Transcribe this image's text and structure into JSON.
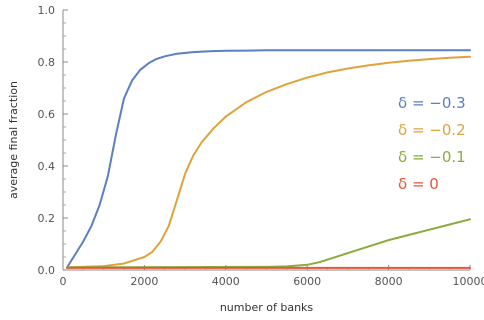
{
  "chart_data": {
    "type": "line",
    "xlabel": "number of banks",
    "ylabel": "average final fraction",
    "xlim": [
      0,
      10000
    ],
    "ylim": [
      0,
      1.0
    ],
    "x_ticks": [
      0,
      2000,
      4000,
      6000,
      8000,
      10000
    ],
    "x_tick_labels": [
      "0",
      "2000",
      "4000",
      "6000",
      "8000",
      "10000"
    ],
    "y_ticks": [
      0,
      0.2,
      0.4,
      0.6,
      0.8,
      1.0
    ],
    "y_tick_labels": [
      "0.0",
      "0.2",
      "0.4",
      "0.6",
      "0.8",
      "1.0"
    ],
    "grid": false,
    "legend_placement": "right",
    "series": [
      {
        "name": "δ = −0.3",
        "color": "#5b7fbf",
        "x": [
          100,
          300,
          500,
          700,
          900,
          1100,
          1300,
          1500,
          1700,
          1900,
          2100,
          2300,
          2500,
          2800,
          3200,
          3600,
          4000,
          4500,
          5000,
          6000,
          7000,
          8000,
          9000,
          10000
        ],
        "y": [
          0.01,
          0.06,
          0.11,
          0.17,
          0.25,
          0.36,
          0.52,
          0.66,
          0.73,
          0.77,
          0.795,
          0.812,
          0.822,
          0.832,
          0.838,
          0.841,
          0.843,
          0.844,
          0.845,
          0.845,
          0.845,
          0.845,
          0.845,
          0.845
        ]
      },
      {
        "name": "δ = −0.2",
        "color": "#e0a23c",
        "x": [
          100,
          1000,
          1500,
          2000,
          2200,
          2400,
          2600,
          2800,
          3000,
          3200,
          3400,
          3700,
          4000,
          4500,
          5000,
          5500,
          6000,
          6500,
          7000,
          7500,
          8000,
          8500,
          9000,
          9500,
          10000
        ],
        "y": [
          0.01,
          0.015,
          0.025,
          0.05,
          0.07,
          0.11,
          0.17,
          0.27,
          0.37,
          0.44,
          0.49,
          0.545,
          0.59,
          0.645,
          0.685,
          0.715,
          0.74,
          0.76,
          0.775,
          0.787,
          0.797,
          0.805,
          0.811,
          0.816,
          0.82
        ]
      },
      {
        "name": "δ = −0.1",
        "color": "#8aab3c",
        "x": [
          100,
          5000,
          5500,
          6000,
          6300,
          6600,
          7000,
          7500,
          8000,
          8500,
          9000,
          9500,
          10000
        ],
        "y": [
          0.01,
          0.012,
          0.014,
          0.02,
          0.03,
          0.045,
          0.065,
          0.09,
          0.115,
          0.135,
          0.155,
          0.175,
          0.195
        ]
      },
      {
        "name": "δ = 0",
        "color": "#e0593c",
        "x": [
          100,
          10000
        ],
        "y": [
          0.008,
          0.008
        ]
      }
    ]
  }
}
